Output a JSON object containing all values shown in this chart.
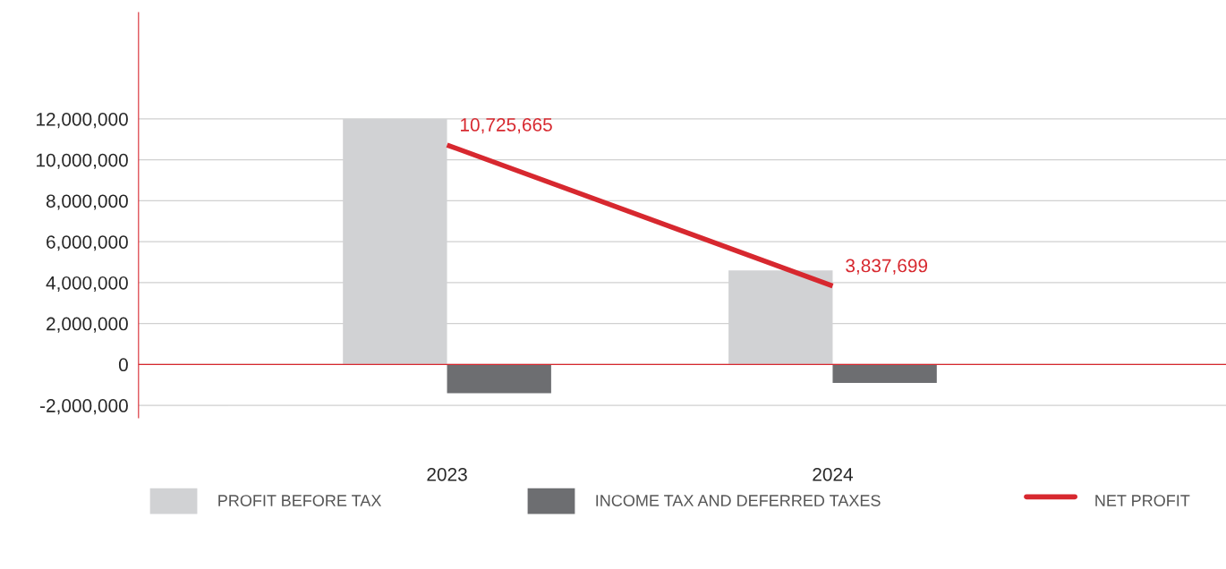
{
  "chart_data": {
    "type": "bar",
    "categories": [
      "2023",
      "2024"
    ],
    "series": [
      {
        "name": "PROFIT BEFORE TAX",
        "color": "#d1d2d4",
        "values": [
          12000000,
          4600000
        ]
      },
      {
        "name": "INCOME TAX AND DEFERRED TAXES",
        "color": "#6d6e71",
        "values": [
          -1400000,
          -900000
        ]
      },
      {
        "name": "NET PROFIT",
        "type": "line",
        "color": "#d7282f",
        "values": [
          10725665,
          3837699
        ],
        "value_labels": [
          "10,725,665",
          "3,837,699"
        ]
      }
    ],
    "ylim": [
      -2600000,
      17200000
    ],
    "yticks": [
      {
        "value": -2000000,
        "label": "-2,000,000"
      },
      0,
      {
        "value": 2000000,
        "label": "2,000,000"
      },
      {
        "value": 4000000,
        "label": "4,000,000"
      },
      {
        "value": 6000000,
        "label": "6,000,000"
      },
      {
        "value": 8000000,
        "label": "8,000,000"
      },
      {
        "value": 10000000,
        "label": "10,000,000"
      },
      {
        "value": 12000000,
        "label": "12,000,000"
      }
    ],
    "ref_lines": [
      {
        "axis": "y",
        "value": 0,
        "color": "#d7282f"
      }
    ],
    "grid": "y",
    "legend": "bottom"
  }
}
